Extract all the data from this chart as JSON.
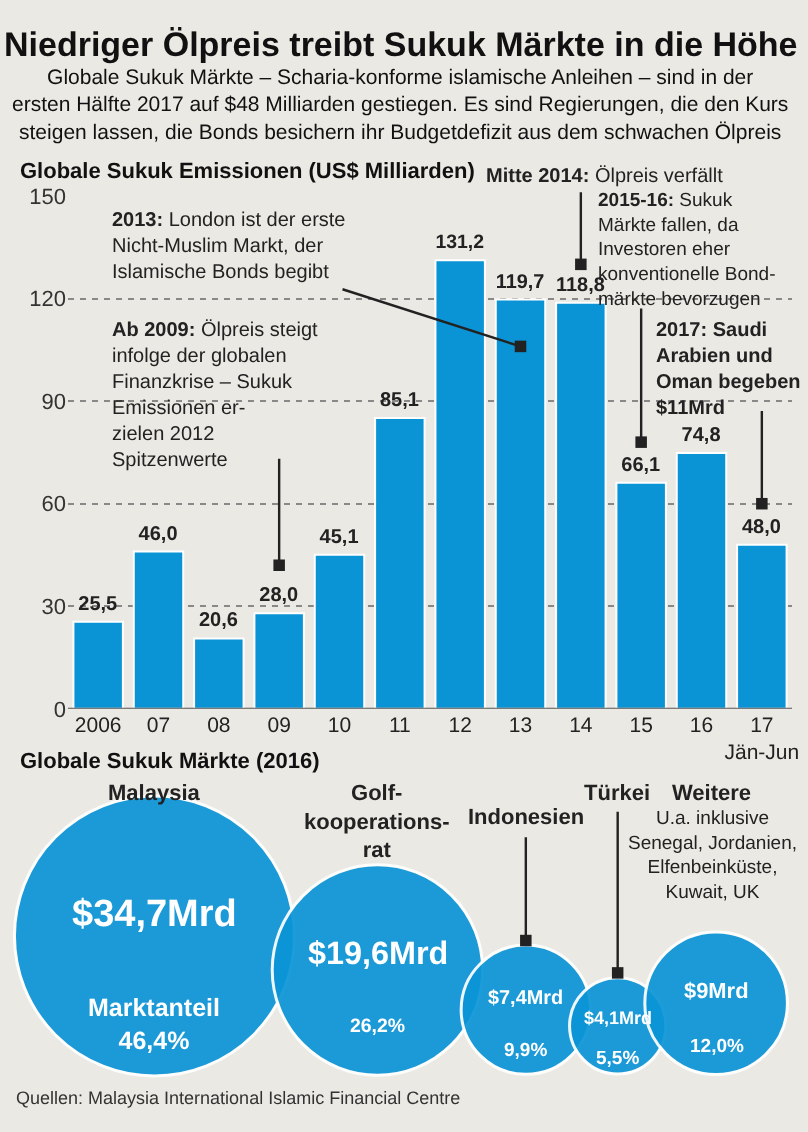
{
  "chart_data": [
    {
      "type": "bar",
      "title": "Niedriger Ölpreis treibt Sukuk Märkte in die Höhe",
      "subtitle": "Globale Sukuk Märkte – Scharia-konforme islamische Anleihen – sind in der\nersten Hälfte 2017 auf $48 Milliarden gestiegen. Es sind Regierungen, die den Kurs\nsteigen lassen, die Bonds besichern ihr Budgetdefizit aus dem schwachen Ölpreis",
      "ylabel": "Globale Sukuk Emissionen (US$ Milliarden)",
      "categories": [
        "2006",
        "07",
        "08",
        "09",
        "10",
        "11",
        "12",
        "13",
        "14",
        "15",
        "16",
        "17\nJän-Jun"
      ],
      "values": [
        25.5,
        46.0,
        20.6,
        28.0,
        45.1,
        85.1,
        131.2,
        119.7,
        118.8,
        66.1,
        74.8,
        48.0
      ],
      "value_labels": [
        "25,5",
        "46,0",
        "20,6",
        "28,0",
        "45,1",
        "85,1",
        "131,2",
        "119,7",
        "118,8",
        "66,1",
        "74,8",
        "48,0"
      ],
      "color": "#0a94d6",
      "ylim": [
        0,
        150
      ],
      "yticks": [
        0,
        30,
        60,
        90,
        120,
        150
      ],
      "grid": "y",
      "annotations": [
        {
          "text": "Mitte 2014: Ölpreis verfällt",
          "x": "14",
          "y": 130
        },
        {
          "text": "2013: London ist der erste\nNicht-Muslim Markt, der\nIslamische Bonds begibt",
          "x": "13",
          "y": 106
        },
        {
          "text": "Ab 2009: Ölpreis steigt\ninfolge der globalen\nFinanzkrise – Sukuk\nEmissionen er-\nzielen 2012\nSpitzenwerte",
          "x": "09",
          "y": 42
        },
        {
          "text": "2015-16: Sukuk\nMärkte fallen, da\nInvestoren eher\nkonventionelle Bond-\nmärkte bevorzugen",
          "x": "15",
          "y": 78
        },
        {
          "text": "2017: Saudi\nArabien und\nOman begeben\n$11Mrd",
          "x": "17\nJän-Jun",
          "y": 60
        }
      ]
    },
    {
      "type": "other",
      "title": "Globale Sukuk Märkte (2016)",
      "categories": [
        "Malaysia",
        "Golf-\nkooperations-\nrat",
        "Indonesien",
        "Türkei",
        "Weitere"
      ],
      "series": [
        {
          "type": "bubble",
          "color": "#0a94d6",
          "values": [
            34.7,
            19.6,
            7.4,
            4.1,
            9
          ],
          "value_labels": [
            "$34,7Mrd",
            "$19,6Mrd",
            "$7,4Mrd",
            "$4,1Mrd",
            "$9Mrd"
          ]
        },
        {
          "type": "other",
          "values": [
            46.4,
            26.2,
            9.9,
            5.5,
            12.0
          ],
          "value_labels": [
            "Marktanteil\n46,4%",
            "26,2%",
            "9,9%",
            "5,5%",
            "12,0%"
          ]
        }
      ],
      "annotations": [
        {
          "text": "U.a. inklusive\nSenegal, Jordanien,\nElfenbeinküste,\nKuwait, UK",
          "x": "Weitere"
        },
        "Quellen: Malaysia International Islamic Financial Centre"
      ]
    }
  ]
}
